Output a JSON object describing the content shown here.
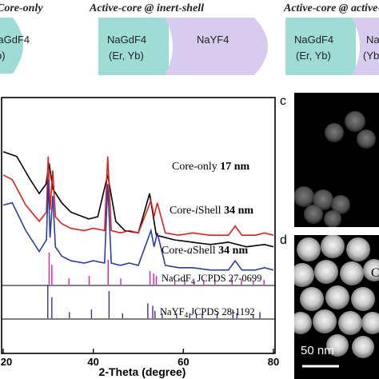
{
  "schematic": {
    "labels": [
      {
        "id": "core_only",
        "text": "Core-only"
      },
      {
        "id": "inert",
        "text": "Active-core @ inert-shell"
      },
      {
        "id": "active",
        "text": "Active-core @ active-shell"
      }
    ],
    "core_material": "NaGdF4",
    "core_dopants": "(Er, Yb)",
    "shell_material": "NaYF4",
    "shell_dopants": "(Yb)",
    "colors": {
      "core": "#9fdcd6",
      "shell": "#d7ccef"
    }
  },
  "panel_letters": {
    "c": "c",
    "d": "d"
  },
  "tem": {
    "scale_label": "50 nm",
    "inset_text": "C"
  },
  "chart_data": {
    "type": "line",
    "xlabel": "2-Theta (degree)",
    "xlim": [
      20,
      80
    ],
    "xticks": [
      20,
      40,
      60,
      80
    ],
    "ylabel": "",
    "series": [
      {
        "name": "Core-only",
        "size": "17 nm",
        "color": "#000000",
        "x": [
          20,
          23,
          26,
          28,
          29.5,
          30.2,
          31,
          33,
          35,
          39,
          41,
          43.2,
          45,
          47,
          50,
          52.5,
          54,
          58,
          62,
          66,
          70,
          74,
          78,
          80
        ],
        "y": [
          0.78,
          0.76,
          0.66,
          0.6,
          0.64,
          0.73,
          0.62,
          0.56,
          0.52,
          0.49,
          0.5,
          0.68,
          0.48,
          0.44,
          0.43,
          0.6,
          0.42,
          0.4,
          0.39,
          0.38,
          0.39,
          0.37,
          0.38,
          0.37
        ]
      },
      {
        "name": "Core-iShell",
        "size": "34 nm",
        "color": "#e0201d",
        "x": [
          20,
          22,
          25,
          28,
          29.6,
          30.0,
          30.4,
          31.0,
          31.6,
          33,
          35,
          38,
          40,
          42.5,
          43.2,
          44,
          46,
          48,
          50,
          52.8,
          53.5,
          54.2,
          56,
          59,
          62,
          66,
          70,
          71.5,
          73,
          76,
          78,
          80
        ],
        "y": [
          0.68,
          0.66,
          0.55,
          0.48,
          0.52,
          0.76,
          0.53,
          0.7,
          0.5,
          0.47,
          0.45,
          0.44,
          0.45,
          0.44,
          0.76,
          0.44,
          0.43,
          0.44,
          0.43,
          0.57,
          0.5,
          0.56,
          0.43,
          0.42,
          0.43,
          0.42,
          0.42,
          0.46,
          0.42,
          0.42,
          0.43,
          0.42
        ]
      },
      {
        "name": "Core-aShell",
        "size": "34 nm",
        "color": "#2c3d9e",
        "x": [
          20,
          22,
          25,
          28,
          29.6,
          30.0,
          30.4,
          31.0,
          31.6,
          33,
          35,
          38,
          40,
          42.5,
          43.2,
          44,
          46,
          48,
          50,
          52.8,
          53.5,
          54.2,
          56,
          59,
          62,
          66,
          70,
          71.5,
          73,
          76,
          78,
          80
        ],
        "y": [
          0.55,
          0.56,
          0.44,
          0.35,
          0.4,
          0.66,
          0.41,
          0.59,
          0.37,
          0.33,
          0.31,
          0.3,
          0.31,
          0.3,
          0.64,
          0.3,
          0.29,
          0.3,
          0.29,
          0.44,
          0.37,
          0.43,
          0.29,
          0.28,
          0.28,
          0.27,
          0.27,
          0.31,
          0.27,
          0.27,
          0.28,
          0.27
        ]
      },
      {
        "name": "NaGdF4 JCPDS 27-0699",
        "color": "#cc1fb5",
        "kind": "sticks",
        "x": [
          30.2,
          30.8,
          34.6,
          39.1,
          43.3,
          46.1,
          52.6,
          53.4,
          54.0,
          58.1,
          60.3,
          62.4,
          64.5,
          67.0,
          70.8,
          72.9,
          75.5,
          77.9
        ],
        "h": [
          0.26,
          0.16,
          0.05,
          0.07,
          0.2,
          0.05,
          0.11,
          0.09,
          0.07,
          0.04,
          0.04,
          0.03,
          0.04,
          0.04,
          0.05,
          0.04,
          0.03,
          0.04
        ]
      },
      {
        "name": "NaYF4 JCPDS 28-1192",
        "color": "#4a2a8c",
        "kind": "sticks",
        "x": [
          29.9,
          30.8,
          34.7,
          39.6,
          43.5,
          46.5,
          52.1,
          53.2,
          53.7,
          55.3,
          58.5,
          61.4,
          62.9,
          64.2,
          67.5,
          71.0,
          71.9,
          75.5,
          77.0
        ],
        "h": [
          0.27,
          0.17,
          0.05,
          0.07,
          0.22,
          0.04,
          0.12,
          0.1,
          0.06,
          0.04,
          0.04,
          0.04,
          0.04,
          0.04,
          0.04,
          0.07,
          0.04,
          0.03,
          0.05
        ]
      }
    ]
  }
}
